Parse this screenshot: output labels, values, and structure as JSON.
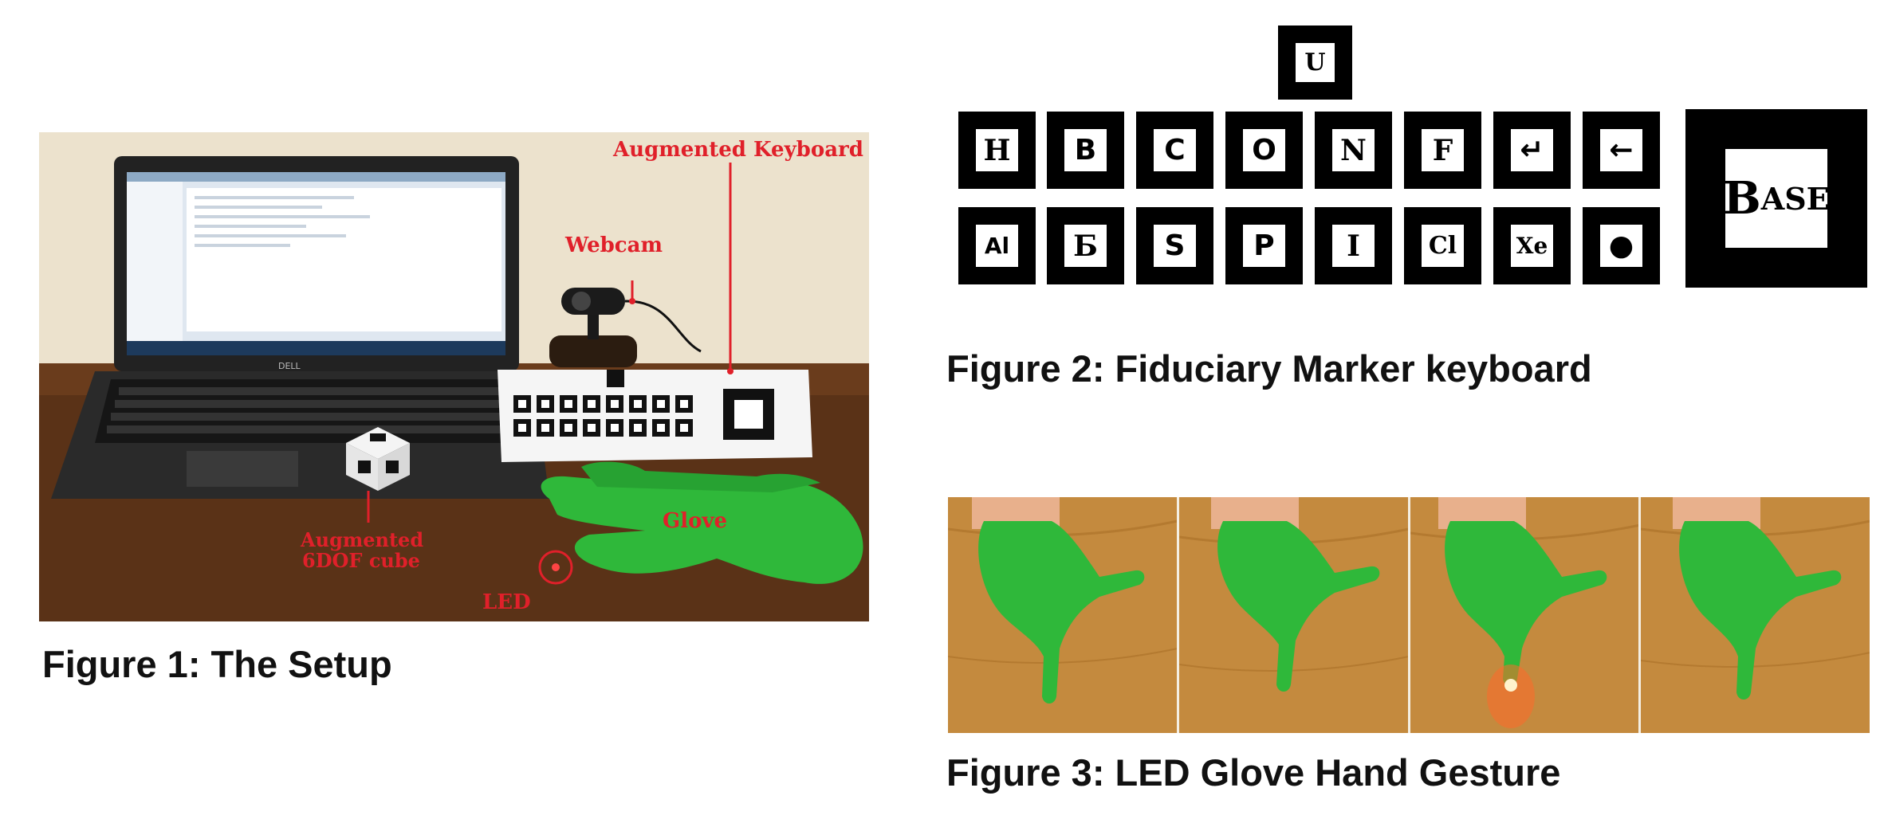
{
  "figures": [
    {
      "caption": "Figure 1: The Setup",
      "labels": {
        "augmented_keyboard": "Augmented Keyboard",
        "webcam": "Webcam",
        "glove": "Glove",
        "cube_line1": "Augmented",
        "cube_line2": "6DOF cube",
        "led": "LED"
      },
      "laptop_brand": "DELL"
    },
    {
      "caption": "Figure 2: Fiduciary Marker keyboard",
      "top_key": "U",
      "row1": [
        "H",
        "B",
        "C",
        "O",
        "N",
        "F",
        "↵",
        "←"
      ],
      "row2": [
        "Al",
        "Ƃ",
        "S",
        "P",
        "I",
        "Cl",
        "Xe",
        "●"
      ],
      "base_key": {
        "first": "B",
        "rest": "ASE"
      }
    },
    {
      "caption": "Figure 3: LED Glove Hand Gesture",
      "panels": 4,
      "led_on_panel": 3
    }
  ],
  "colors": {
    "label_red": "#e0202a",
    "glove_green": "#2fb83a",
    "table_wood": "#c48a3e"
  }
}
